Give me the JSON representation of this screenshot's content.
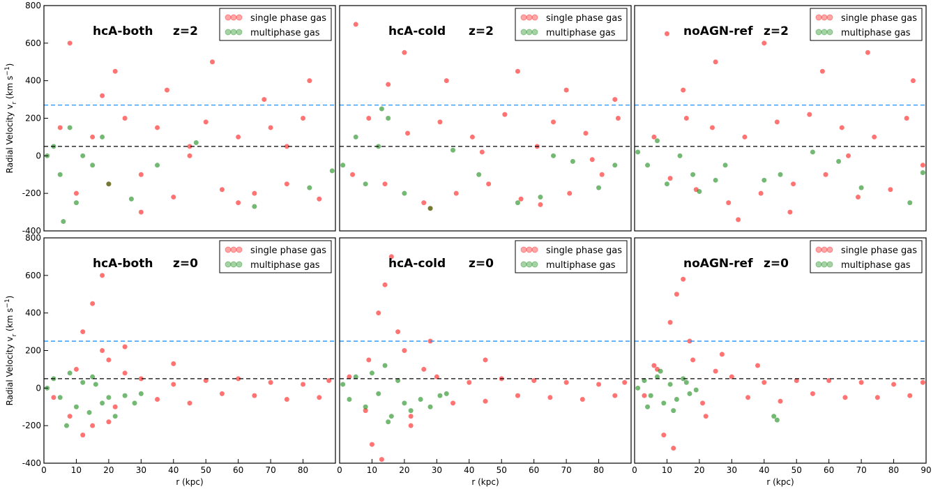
{
  "chart_data": [
    {
      "type": "scatter",
      "title": "hcA-both",
      "redshift": "z=2",
      "legend": "upper right",
      "ylabel": [
        "Radial Velocity v",
        "r",
        " (km s",
        "−1",
        ")"
      ],
      "xlim": [
        0,
        90
      ],
      "ylim": [
        -400,
        800
      ],
      "yticks": [
        -400,
        -200,
        0,
        200,
        400,
        600,
        800
      ],
      "hlines": [
        {
          "value": 270,
          "color": "#1e90ff",
          "dashed": true
        },
        {
          "value": 50,
          "color": "#000000",
          "dashed": true
        }
      ],
      "series": [
        {
          "name": "single phase gas",
          "color": "#ff0000",
          "x": [
            5,
            10,
            15,
            20,
            25,
            30,
            35,
            40,
            45,
            50,
            55,
            60,
            65,
            70,
            75,
            80,
            85,
            8,
            22,
            38,
            52,
            68,
            82,
            30,
            60,
            45,
            75,
            18
          ],
          "y": [
            150,
            -200,
            100,
            -150,
            200,
            -100,
            150,
            -220,
            50,
            180,
            -180,
            100,
            -200,
            150,
            -150,
            200,
            -230,
            600,
            450,
            350,
            500,
            300,
            400,
            -300,
            -250,
            0,
            50,
            320
          ]
        },
        {
          "name": "multiphase gas",
          "color": "#008000",
          "x": [
            1,
            3,
            5,
            8,
            10,
            12,
            15,
            18,
            27,
            47,
            35,
            65,
            82,
            89,
            20,
            6
          ],
          "y": [
            0,
            50,
            -100,
            150,
            -250,
            0,
            -50,
            100,
            -230,
            70,
            -50,
            -270,
            -170,
            -80,
            -150,
            -350
          ]
        }
      ]
    },
    {
      "type": "scatter",
      "title": "hcA-cold",
      "redshift": "z=2",
      "legend": "upper right",
      "xlim": [
        0,
        90
      ],
      "ylim": [
        -400,
        800
      ],
      "hlines": [
        {
          "value": 270,
          "color": "#1e90ff",
          "dashed": true
        },
        {
          "value": 50,
          "color": "#000000",
          "dashed": true
        }
      ],
      "series": [
        {
          "name": "single phase gas",
          "color": "#ff0000",
          "x": [
            4,
            9,
            14,
            21,
            26,
            31,
            36,
            41,
            46,
            51,
            56,
            61,
            66,
            71,
            76,
            81,
            86,
            5,
            20,
            33,
            55,
            70,
            85,
            28,
            62,
            44,
            78,
            15
          ],
          "y": [
            -100,
            200,
            -150,
            120,
            -250,
            180,
            -200,
            100,
            -150,
            220,
            -230,
            50,
            180,
            -200,
            120,
            -100,
            200,
            700,
            550,
            400,
            450,
            350,
            300,
            -280,
            -260,
            20,
            -20,
            380
          ]
        },
        {
          "name": "multiphase gas",
          "color": "#008000",
          "x": [
            1,
            5,
            8,
            12,
            15,
            20,
            28,
            35,
            43,
            55,
            62,
            66,
            72,
            80,
            85,
            13
          ],
          "y": [
            -50,
            100,
            -150,
            50,
            200,
            -200,
            -280,
            30,
            -100,
            -250,
            -220,
            0,
            -30,
            -170,
            -50,
            250
          ]
        }
      ]
    },
    {
      "type": "scatter",
      "title": "noAGN-ref",
      "redshift": "z=2",
      "legend": "upper right",
      "xlim": [
        0,
        90
      ],
      "ylim": [
        -400,
        800
      ],
      "hlines": [
        {
          "value": 270,
          "color": "#1e90ff",
          "dashed": true
        },
        {
          "value": 50,
          "color": "#000000",
          "dashed": true
        }
      ],
      "series": [
        {
          "name": "single phase gas",
          "color": "#ff0000",
          "x": [
            6,
            11,
            16,
            19,
            24,
            29,
            34,
            39,
            44,
            49,
            54,
            59,
            64,
            69,
            74,
            79,
            84,
            89,
            10,
            25,
            40,
            58,
            72,
            86,
            32,
            48,
            66,
            15
          ],
          "y": [
            100,
            -120,
            200,
            -180,
            150,
            -250,
            100,
            -200,
            180,
            -150,
            220,
            -100,
            150,
            -220,
            100,
            -180,
            200,
            -50,
            650,
            500,
            600,
            450,
            550,
            400,
            -340,
            -300,
            0,
            350
          ]
        },
        {
          "name": "multiphase gas",
          "color": "#008000",
          "x": [
            1,
            4,
            7,
            10,
            14,
            18,
            20,
            25,
            28,
            40,
            45,
            55,
            63,
            70,
            85,
            89
          ],
          "y": [
            20,
            -50,
            80,
            -150,
            0,
            -100,
            -190,
            -130,
            -50,
            -130,
            -100,
            20,
            -30,
            -170,
            -250,
            -90
          ]
        }
      ]
    },
    {
      "type": "scatter",
      "title": "hcA-both",
      "redshift": "z=0",
      "legend": "upper right",
      "ylabel": [
        "Radial Velocity v",
        "r",
        " (km s",
        "−1",
        ")"
      ],
      "xlabel": "r (kpc)",
      "xlim": [
        0,
        90
      ],
      "ylim": [
        -400,
        800
      ],
      "xticks": [
        0,
        10,
        20,
        30,
        40,
        50,
        60,
        70,
        80
      ],
      "yticks": [
        -400,
        -200,
        0,
        200,
        400,
        600,
        800
      ],
      "hlines": [
        {
          "value": 250,
          "color": "#1e90ff",
          "dashed": true
        },
        {
          "value": 50,
          "color": "#000000",
          "dashed": true
        }
      ],
      "series": [
        {
          "name": "single phase gas",
          "color": "#ff0000",
          "x": [
            3,
            8,
            12,
            15,
            18,
            20,
            22,
            25,
            30,
            35,
            40,
            45,
            50,
            55,
            60,
            65,
            70,
            75,
            80,
            85,
            88,
            15,
            18,
            12,
            10,
            20,
            25,
            40
          ],
          "y": [
            -50,
            -150,
            300,
            450,
            600,
            150,
            -100,
            80,
            50,
            -60,
            20,
            -80,
            40,
            -30,
            50,
            -40,
            30,
            -60,
            20,
            -50,
            40,
            -200,
            200,
            -250,
            100,
            -180,
            220,
            130
          ]
        },
        {
          "name": "multiphase gas",
          "color": "#008000",
          "x": [
            1,
            3,
            5,
            8,
            10,
            12,
            14,
            16,
            18,
            20,
            22,
            25,
            28,
            30,
            7,
            15
          ],
          "y": [
            0,
            50,
            -50,
            80,
            -100,
            30,
            -130,
            20,
            -80,
            -50,
            -150,
            -40,
            -80,
            -30,
            -200,
            60
          ]
        }
      ]
    },
    {
      "type": "scatter",
      "title": "hcA-cold",
      "redshift": "z=0",
      "legend": "upper right",
      "xlabel": "r (kpc)",
      "xlim": [
        0,
        90
      ],
      "ylim": [
        -400,
        800
      ],
      "xticks": [
        0,
        10,
        20,
        30,
        40,
        50,
        60,
        70,
        80
      ],
      "hlines": [
        {
          "value": 250,
          "color": "#1e90ff",
          "dashed": true
        },
        {
          "value": 50,
          "color": "#000000",
          "dashed": true
        }
      ],
      "series": [
        {
          "name": "single phase gas",
          "color": "#ff0000",
          "x": [
            3,
            8,
            12,
            14,
            16,
            20,
            22,
            26,
            30,
            35,
            40,
            45,
            50,
            55,
            60,
            65,
            70,
            75,
            80,
            85,
            88,
            10,
            18,
            13,
            9,
            22,
            28,
            45
          ],
          "y": [
            60,
            -120,
            400,
            550,
            700,
            200,
            -150,
            100,
            60,
            -80,
            30,
            -70,
            50,
            -40,
            40,
            -50,
            30,
            -60,
            20,
            -40,
            30,
            -300,
            300,
            -380,
            150,
            -200,
            250,
            150
          ]
        },
        {
          "name": "multiphase gas",
          "color": "#008000",
          "x": [
            1,
            3,
            5,
            8,
            10,
            12,
            14,
            16,
            18,
            20,
            22,
            25,
            28,
            31,
            33,
            15
          ],
          "y": [
            20,
            -60,
            60,
            -100,
            80,
            -30,
            120,
            -150,
            40,
            -80,
            -120,
            -60,
            -100,
            -40,
            -30,
            -180
          ]
        }
      ]
    },
    {
      "type": "scatter",
      "title": "noAGN-ref",
      "redshift": "z=0",
      "legend": "upper right",
      "xlabel": "r (kpc)",
      "xlim": [
        0,
        90
      ],
      "ylim": [
        -400,
        800
      ],
      "xticks": [
        0,
        10,
        20,
        30,
        40,
        50,
        60,
        70,
        80,
        90
      ],
      "hlines": [
        {
          "value": 250,
          "color": "#1e90ff",
          "dashed": true
        },
        {
          "value": 50,
          "color": "#000000",
          "dashed": true
        }
      ],
      "series": [
        {
          "name": "single phase gas",
          "color": "#ff0000",
          "x": [
            3,
            7,
            11,
            13,
            15,
            18,
            21,
            25,
            30,
            35,
            40,
            45,
            50,
            55,
            60,
            65,
            70,
            75,
            80,
            85,
            89,
            9,
            17,
            12,
            6,
            22,
            27,
            38
          ],
          "y": [
            -40,
            100,
            350,
            500,
            580,
            150,
            -80,
            90,
            60,
            -50,
            30,
            -70,
            40,
            -30,
            40,
            -50,
            30,
            -50,
            20,
            -40,
            30,
            -250,
            250,
            -320,
            120,
            -150,
            180,
            120
          ]
        },
        {
          "name": "multiphase gas",
          "color": "#008000",
          "x": [
            1,
            3,
            5,
            7,
            9,
            11,
            13,
            15,
            17,
            19,
            4,
            8,
            12,
            16,
            44,
            43
          ],
          "y": [
            0,
            40,
            -40,
            60,
            -80,
            20,
            -60,
            50,
            -30,
            -10,
            -100,
            90,
            -120,
            30,
            -170,
            -150
          ]
        }
      ]
    }
  ]
}
